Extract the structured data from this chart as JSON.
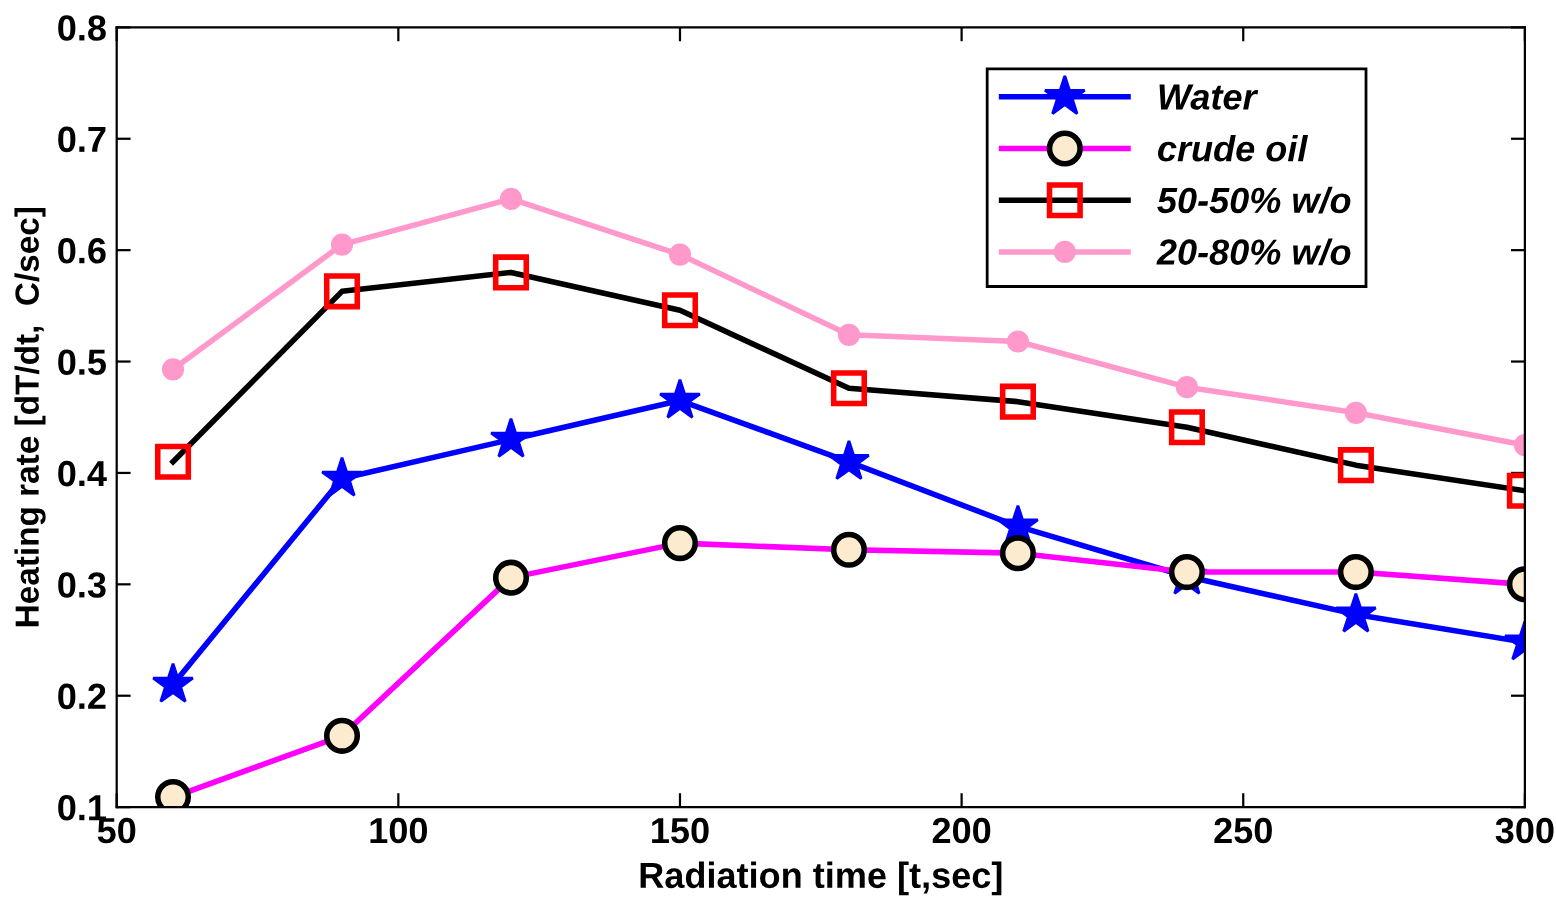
{
  "chart_data": {
    "type": "line",
    "xlabel": "Radiation time [t,sec]",
    "ylabel": "Heating rate [dT/dt,  C/sec]",
    "x": [
      60,
      90,
      120,
      150,
      180,
      210,
      240,
      270,
      300
    ],
    "series": [
      {
        "name": "Water",
        "color": "#0000ff",
        "marker": "star",
        "values": [
          0.21,
          0.395,
          0.43,
          0.465,
          0.41,
          0.352,
          0.307,
          0.273,
          0.248
        ]
      },
      {
        "name": "crude oil",
        "color": "#ff00ff",
        "marker": "circle",
        "values": [
          0.109,
          0.164,
          0.306,
          0.337,
          0.331,
          0.328,
          0.311,
          0.311,
          0.3
        ]
      },
      {
        "name": "50-50% w/o",
        "color": "#000000",
        "marker": "square",
        "values": [
          0.41,
          0.563,
          0.58,
          0.546,
          0.476,
          0.464,
          0.441,
          0.407,
          0.384
        ]
      },
      {
        "name": "20-80% w/o",
        "color": "#ff99cc",
        "marker": "circle",
        "values": [
          0.493,
          0.605,
          0.646,
          0.596,
          0.524,
          0.518,
          0.477,
          0.454,
          0.425
        ]
      }
    ],
    "xlim": [
      50,
      300
    ],
    "xticks": [
      50,
      100,
      150,
      200,
      250,
      300
    ],
    "ylim": [
      0.1,
      0.8
    ],
    "yticks": [
      0.1,
      0.2,
      0.3,
      0.4,
      0.5,
      0.6,
      0.7,
      0.8
    ],
    "legend": "top right",
    "line_style": "solid"
  }
}
